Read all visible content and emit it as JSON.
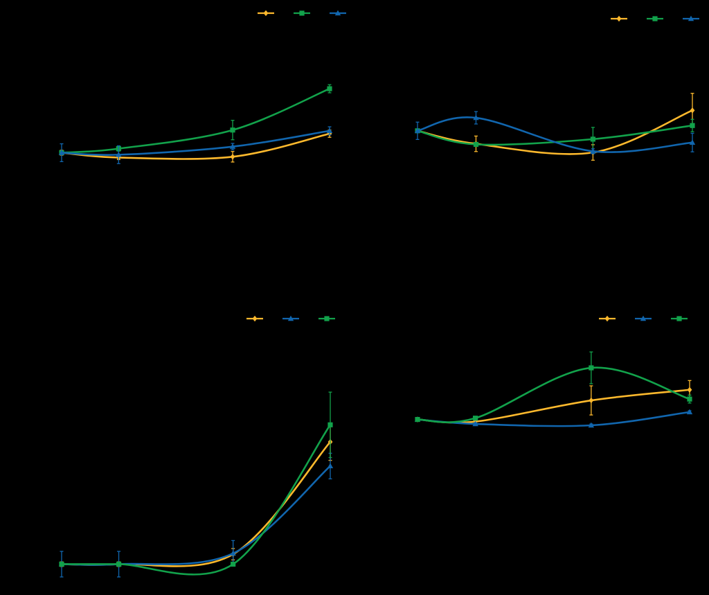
{
  "colors": {
    "background": "#000000",
    "yellow": "#FDB92D",
    "green": "#12A24B",
    "blue": "#1166AE"
  },
  "chart_data": [
    {
      "type": "line",
      "panel": "top-left",
      "legend_position": "top-right",
      "x": [
        0,
        1,
        3,
        4.7
      ],
      "xlim": [
        0,
        4.7
      ],
      "ylim": [
        -1.9,
        4.6
      ],
      "grid": false,
      "series": [
        {
          "color": "yellow",
          "marker": "diamond",
          "values": [
            1.0,
            0.88,
            0.9,
            1.47
          ],
          "errors": [
            0.06,
            0.05,
            0.13,
            0.09
          ]
        },
        {
          "color": "green",
          "marker": "square",
          "values": [
            1.0,
            1.1,
            1.56,
            2.58
          ],
          "errors": [
            0.04,
            0.06,
            0.24,
            0.1
          ]
        },
        {
          "color": "blue",
          "marker": "triangle",
          "values": [
            1.0,
            0.95,
            1.15,
            1.54
          ],
          "errors": [
            0.22,
            0.22,
            0.08,
            0.1
          ]
        }
      ]
    },
    {
      "type": "line",
      "panel": "top-right",
      "legend_position": "top-right",
      "x": [
        0,
        1,
        3,
        4.7
      ],
      "xlim": [
        0,
        4.7
      ],
      "ylim": [
        -3.5,
        5.0
      ],
      "grid": false,
      "series": [
        {
          "color": "yellow",
          "marker": "diamond",
          "values": [
            1.0,
            0.58,
            0.3,
            1.66
          ],
          "errors": [
            0.05,
            0.25,
            0.25,
            0.55
          ]
        },
        {
          "color": "green",
          "marker": "square",
          "values": [
            1.0,
            0.56,
            0.73,
            1.17
          ],
          "errors": [
            0.04,
            0.05,
            0.38,
            0.2
          ]
        },
        {
          "color": "blue",
          "marker": "triangle",
          "values": [
            1.0,
            1.42,
            0.34,
            0.62
          ],
          "errors": [
            0.28,
            0.2,
            0.08,
            0.3
          ]
        }
      ]
    },
    {
      "type": "line",
      "panel": "bottom-left",
      "legend_position": "top-right",
      "x": [
        0,
        1,
        3,
        4.7
      ],
      "xlim": [
        0,
        4.7
      ],
      "ylim": [
        0.5,
        10.0
      ],
      "grid": false,
      "series": [
        {
          "color": "yellow",
          "marker": "diamond",
          "values": [
            1.0,
            1.0,
            1.35,
            5.3
          ],
          "errors": [
            0.08,
            0.08,
            0.2,
            0.65
          ]
        },
        {
          "color": "blue",
          "marker": "triangle",
          "values": [
            1.0,
            1.0,
            1.38,
            4.45
          ],
          "errors": [
            0.45,
            0.45,
            0.45,
            0.45
          ]
        },
        {
          "color": "green",
          "marker": "square",
          "values": [
            1.0,
            1.0,
            1.0,
            5.9
          ],
          "errors": [
            0.05,
            0.05,
            0.05,
            1.15
          ]
        }
      ]
    },
    {
      "type": "line",
      "panel": "bottom-right",
      "legend_position": "top-right",
      "x": [
        0,
        1,
        3,
        4.7
      ],
      "xlim": [
        0,
        4.7
      ],
      "ylim": [
        -5.0,
        5.2
      ],
      "grid": false,
      "series": [
        {
          "color": "yellow",
          "marker": "diamond",
          "values": [
            1.0,
            0.92,
            1.72,
            2.12
          ],
          "errors": [
            0.04,
            0.06,
            0.55,
            0.35
          ]
        },
        {
          "color": "blue",
          "marker": "triangle",
          "values": [
            1.0,
            0.83,
            0.78,
            1.28
          ],
          "errors": [
            0.04,
            0.05,
            0.05,
            0.05
          ]
        },
        {
          "color": "green",
          "marker": "square",
          "values": [
            1.0,
            1.05,
            2.95,
            1.77
          ],
          "errors": [
            0.04,
            0.05,
            0.6,
            0.15
          ]
        }
      ]
    }
  ]
}
